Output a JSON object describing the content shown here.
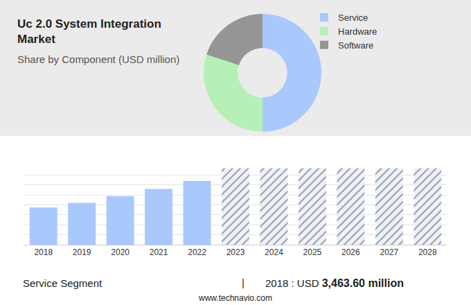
{
  "chart_data": [
    {
      "type": "pie",
      "title": "Uc 2.0 System Integration Market",
      "subtitle": "Share by Component (USD million)",
      "categories": [
        "Service",
        "Hardware",
        "Software"
      ],
      "values": [
        50,
        30,
        20
      ],
      "colors": [
        "#a9c8fb",
        "#b6f0b6",
        "#959595"
      ],
      "legend": "right"
    },
    {
      "type": "bar",
      "categories": [
        "2018",
        "2019",
        "2020",
        "2021",
        "2022",
        "2023",
        "2024",
        "2025",
        "2026",
        "2027",
        "2028"
      ],
      "values": [
        56,
        63,
        73,
        84,
        96,
        115,
        115,
        115,
        115,
        115,
        115
      ],
      "colors": [
        "#a9c8fb",
        "#a9c8fb",
        "#a9c8fb",
        "#a9c8fb",
        "#a9c8fb",
        "#eef2fb",
        "#eef2fb",
        "#eef2fb",
        "#eef2fb",
        "#eef2fb",
        "#eef2fb"
      ],
      "ylim": [
        0,
        120
      ],
      "yticks": [
        0,
        15,
        30,
        45,
        60,
        75,
        90,
        105,
        120
      ],
      "grid": true,
      "tick_labels": "x"
    }
  ],
  "footer": {
    "left": "Service Segment",
    "separator": "|",
    "right_prefix": "2018 : USD",
    "right_value": "3,463.60 million"
  },
  "source": "www.technavio.com"
}
